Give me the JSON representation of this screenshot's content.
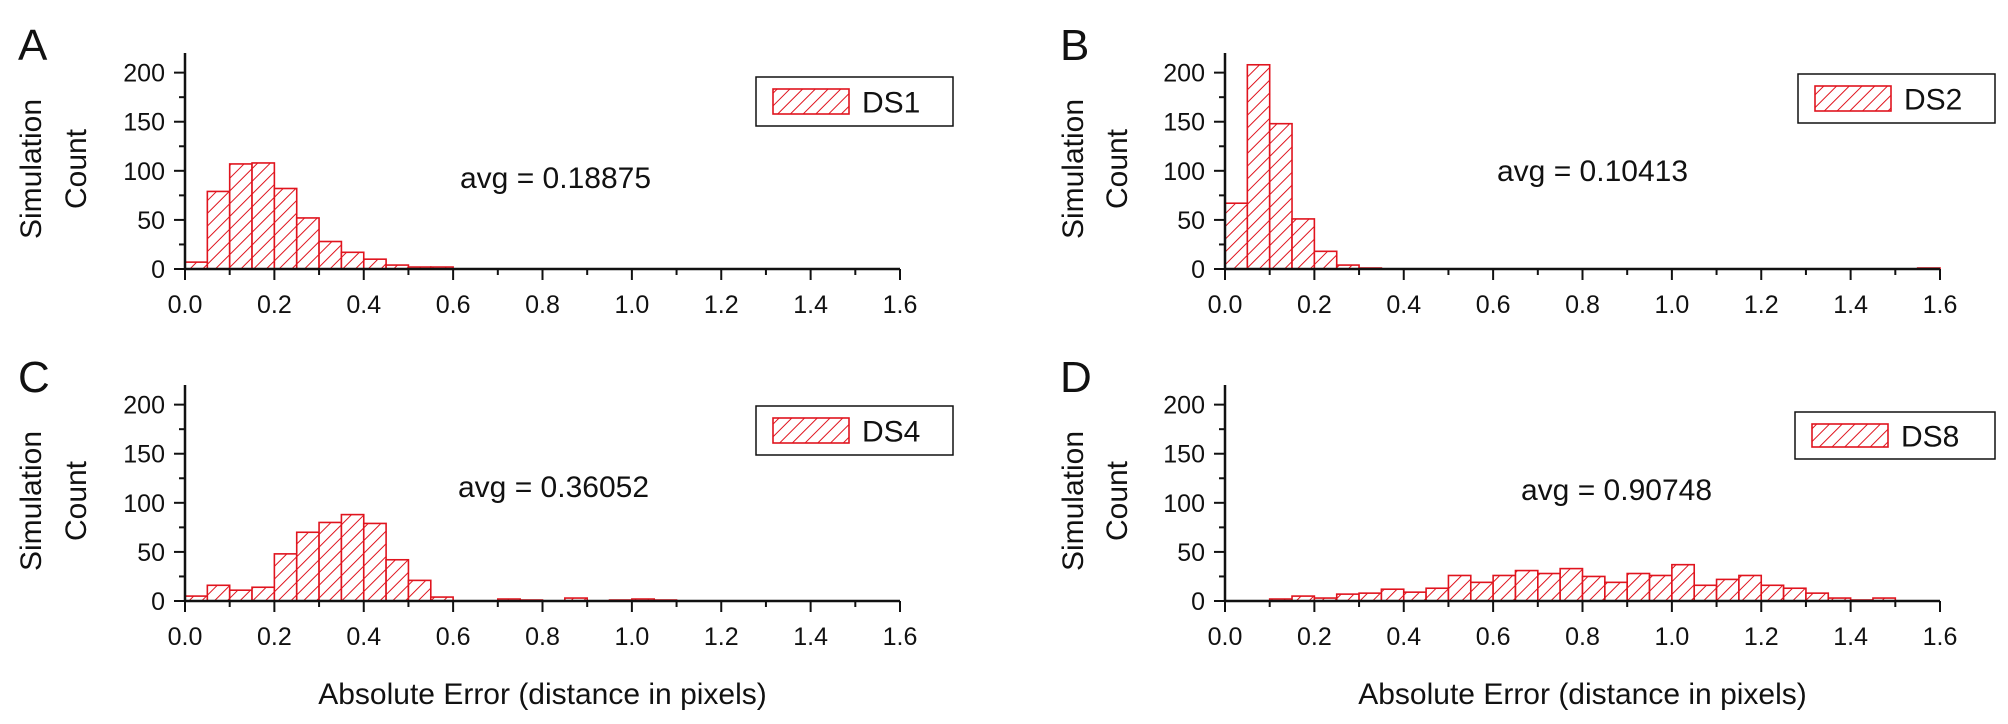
{
  "colors": {
    "bar": "#e0141e",
    "axis": "#111111",
    "background": "#ffffff"
  },
  "chart_data": [
    {
      "type": "bar",
      "panel": "A",
      "legend": "DS1",
      "annotation": "avg = 0.18875",
      "ylabel": [
        "Simulation",
        "Count"
      ],
      "xlabel": "",
      "xlim": [
        0.0,
        1.6
      ],
      "ylim": [
        0,
        220
      ],
      "xticks": [
        "0.0",
        "0.2",
        "0.4",
        "0.6",
        "0.8",
        "1.0",
        "1.2",
        "1.4",
        "1.6"
      ],
      "yticks": [
        "0",
        "50",
        "100",
        "150",
        "200"
      ],
      "bin_width": 0.05,
      "bins_start": [
        0.0,
        0.05,
        0.1,
        0.15,
        0.2,
        0.25,
        0.3,
        0.35,
        0.4,
        0.45,
        0.5,
        0.55
      ],
      "values": [
        7,
        79,
        107,
        108,
        82,
        52,
        28,
        17,
        10,
        4,
        2,
        2
      ]
    },
    {
      "type": "bar",
      "panel": "B",
      "legend": "DS2",
      "annotation": "avg = 0.10413",
      "ylabel": [
        "Simulation",
        "Count"
      ],
      "xlabel": "",
      "xlim": [
        0.0,
        1.6
      ],
      "ylim": [
        0,
        220
      ],
      "xticks": [
        "0.0",
        "0.2",
        "0.4",
        "0.6",
        "0.8",
        "1.0",
        "1.2",
        "1.4",
        "1.6"
      ],
      "yticks": [
        "0",
        "50",
        "100",
        "150",
        "200"
      ],
      "bin_width": 0.05,
      "bins_start": [
        0.0,
        0.05,
        0.1,
        0.15,
        0.2,
        0.25,
        0.3,
        1.55
      ],
      "values": [
        67,
        208,
        148,
        51,
        18,
        4,
        1,
        1
      ]
    },
    {
      "type": "bar",
      "panel": "C",
      "legend": "DS4",
      "annotation": "avg = 0.36052",
      "ylabel": [
        "Simulation",
        "Count"
      ],
      "xlabel": "Absolute Error (distance in pixels)",
      "xlim": [
        0.0,
        1.6
      ],
      "ylim": [
        0,
        220
      ],
      "xticks": [
        "0.0",
        "0.2",
        "0.4",
        "0.6",
        "0.8",
        "1.0",
        "1.2",
        "1.4",
        "1.6"
      ],
      "yticks": [
        "0",
        "50",
        "100",
        "150",
        "200"
      ],
      "bin_width": 0.05,
      "bins_start": [
        0.0,
        0.05,
        0.1,
        0.15,
        0.2,
        0.25,
        0.3,
        0.35,
        0.4,
        0.45,
        0.5,
        0.55,
        0.7,
        0.75,
        0.85,
        0.95,
        1.0,
        1.05
      ],
      "values": [
        5,
        16,
        11,
        14,
        48,
        70,
        80,
        88,
        79,
        42,
        21,
        4,
        2,
        1,
        3,
        1,
        2,
        1
      ]
    },
    {
      "type": "bar",
      "panel": "D",
      "legend": "DS8",
      "annotation": "avg = 0.90748",
      "ylabel": [
        "Simulation",
        "Count"
      ],
      "xlabel": "Absolute Error (distance in pixels)",
      "xlim": [
        0.0,
        1.6
      ],
      "ylim": [
        0,
        220
      ],
      "xticks": [
        "0.0",
        "0.2",
        "0.4",
        "0.6",
        "0.8",
        "1.0",
        "1.2",
        "1.4",
        "1.6"
      ],
      "yticks": [
        "0",
        "50",
        "100",
        "150",
        "200"
      ],
      "bin_width": 0.05,
      "bins_start": [
        0.1,
        0.15,
        0.2,
        0.25,
        0.3,
        0.35,
        0.4,
        0.45,
        0.5,
        0.55,
        0.6,
        0.65,
        0.7,
        0.75,
        0.8,
        0.85,
        0.9,
        0.95,
        1.0,
        1.05,
        1.1,
        1.15,
        1.2,
        1.25,
        1.3,
        1.35,
        1.4,
        1.45
      ],
      "values": [
        2,
        5,
        3,
        7,
        8,
        12,
        9,
        13,
        26,
        19,
        26,
        31,
        28,
        33,
        25,
        19,
        28,
        26,
        37,
        16,
        22,
        26,
        16,
        13,
        8,
        3,
        1,
        3
      ]
    }
  ]
}
